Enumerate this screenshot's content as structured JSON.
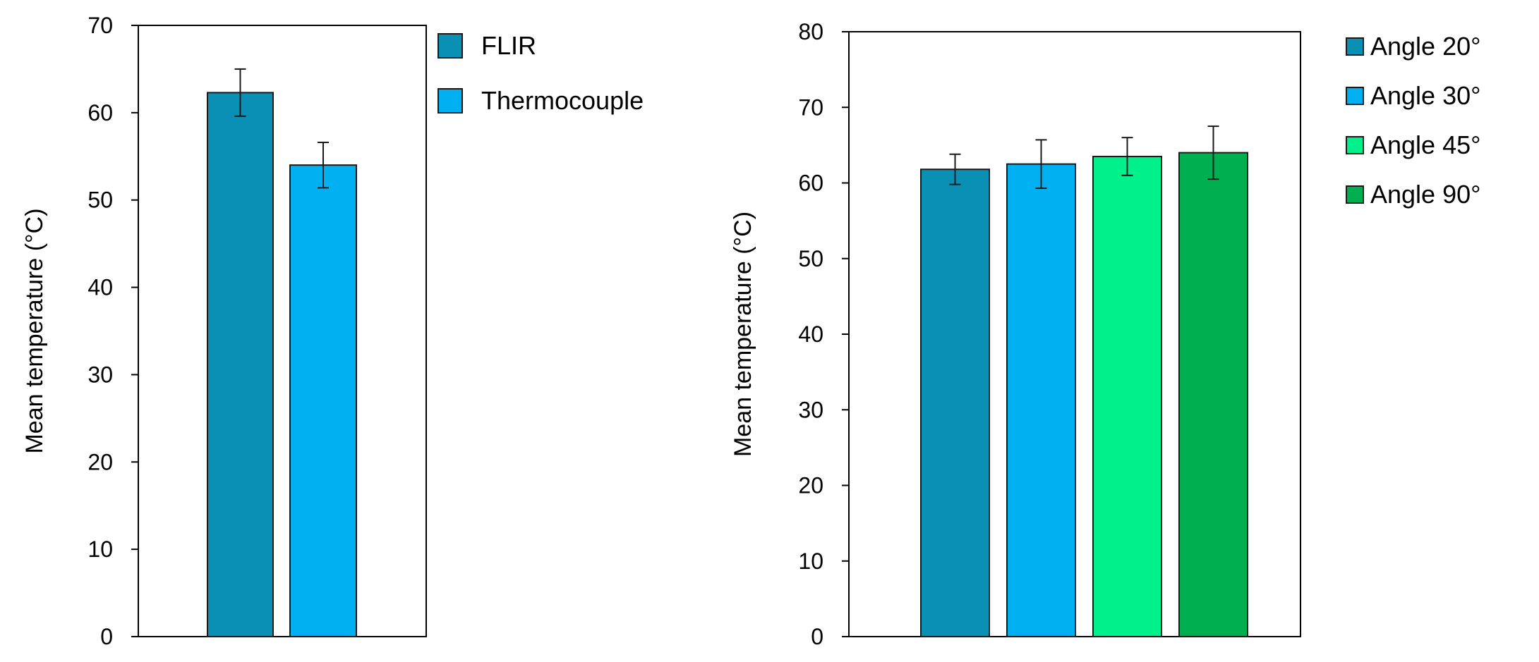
{
  "chart_data": [
    {
      "type": "bar",
      "ylabel": "Mean temperature (°C)",
      "ylim": [
        0,
        70
      ],
      "yticks": [
        0,
        10,
        20,
        30,
        40,
        50,
        60,
        70
      ],
      "grid": false,
      "legend_position": "right",
      "series": [
        {
          "name": "FLIR",
          "value": 62.3,
          "error": 2.7,
          "color": "#0a8fb5"
        },
        {
          "name": "Thermocouple",
          "value": 54.0,
          "error": 2.6,
          "color": "#00b0f0"
        }
      ]
    },
    {
      "type": "bar",
      "ylabel": "Mean temperature (°C)",
      "ylim": [
        0,
        80
      ],
      "yticks": [
        0,
        10,
        20,
        30,
        40,
        50,
        60,
        70,
        80
      ],
      "grid": false,
      "legend_position": "right",
      "series": [
        {
          "name": "Angle 20°",
          "value": 61.8,
          "error": 2.0,
          "color": "#0a8fb5"
        },
        {
          "name": "Angle 30°",
          "value": 62.5,
          "error": 3.2,
          "color": "#00b0f0"
        },
        {
          "name": "Angle 45°",
          "value": 63.5,
          "error": 2.5,
          "color": "#00f08c"
        },
        {
          "name": "Angle 90°",
          "value": 64.0,
          "error": 3.5,
          "color": "#00b050"
        }
      ]
    }
  ]
}
